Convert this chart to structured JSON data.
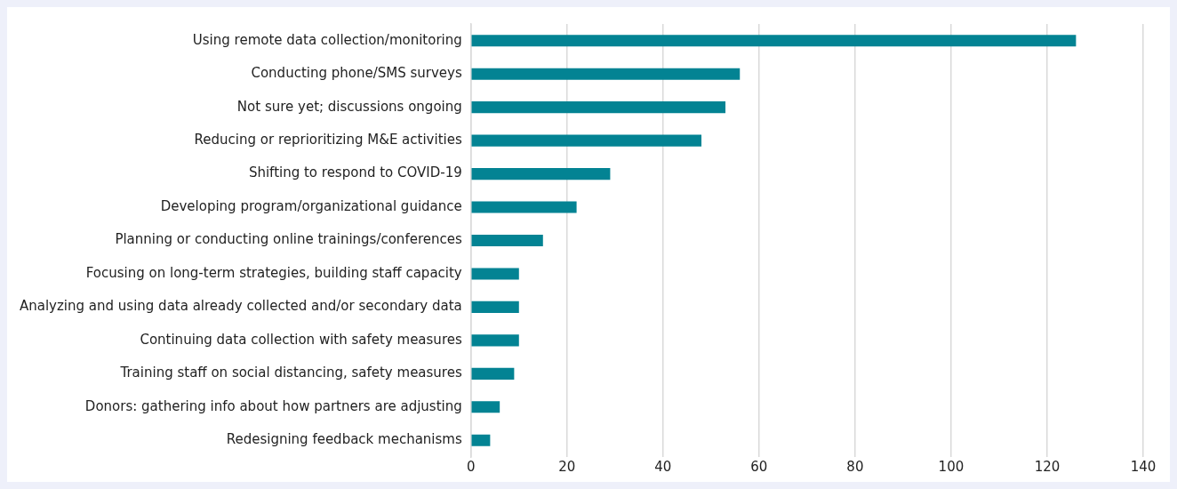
{
  "chart_data": {
    "type": "bar",
    "orientation": "horizontal",
    "categories": [
      "Using remote data collection/monitoring",
      "Conducting phone/SMS surveys",
      "Not sure yet; discussions ongoing",
      "Reducing or reprioritizing M&E activities",
      "Shifting to respond to COVID-19",
      "Developing program/organizational guidance",
      "Planning or conducting online trainings/conferences",
      "Focusing on long-term strategies, building staff capacity",
      "Analyzing and using data already collected and/or secondary data",
      "Continuing data collection with safety measures",
      "Training staff on social distancing, safety measures",
      "Donors: gathering info about how partners are adjusting",
      "Redesigning feedback mechanisms"
    ],
    "values": [
      126,
      56,
      53,
      48,
      29,
      22,
      15,
      10,
      10,
      10,
      9,
      6,
      4
    ],
    "color": "#038393",
    "xlim": [
      0,
      140
    ],
    "xticks": [
      0,
      20,
      40,
      60,
      80,
      100,
      120,
      140
    ],
    "grid": "x"
  }
}
